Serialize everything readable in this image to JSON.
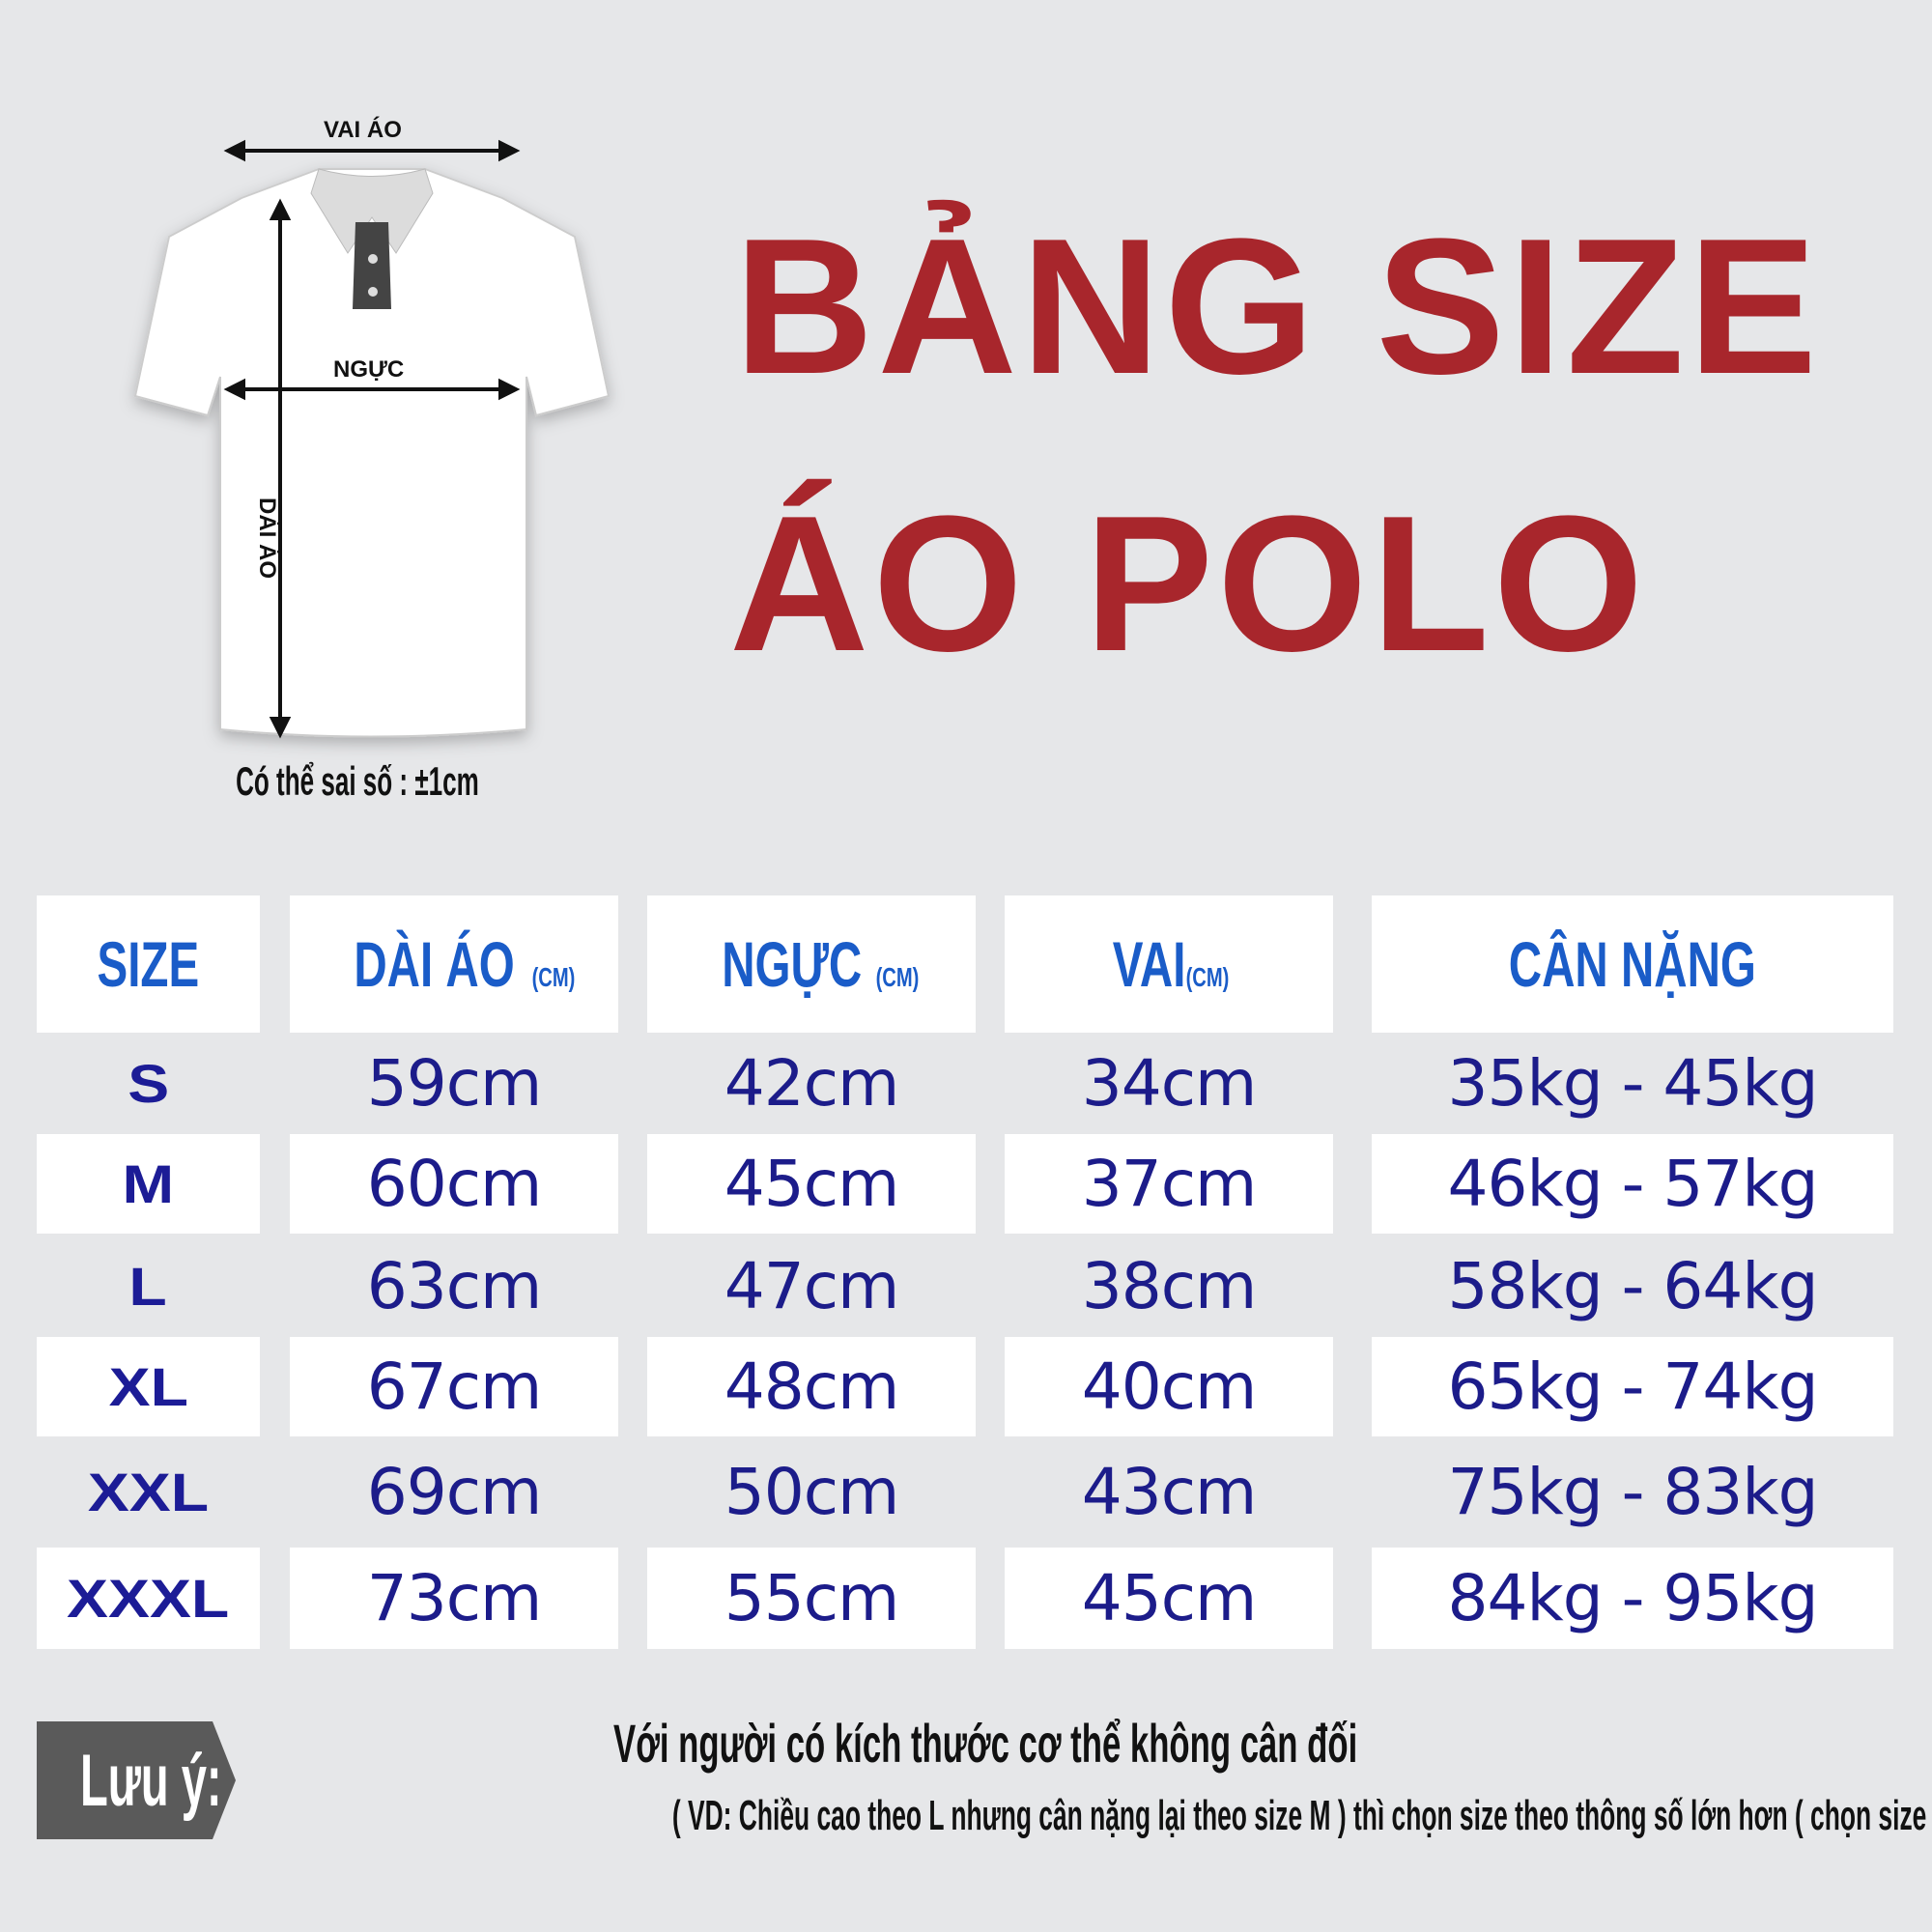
{
  "title": {
    "line1": "BẢNG SIZE",
    "line2": "ÁO POLO"
  },
  "diagram": {
    "shoulder_label": "VAI ÁO",
    "chest_label": "NGỰC",
    "length_label": "DÀI ÁO",
    "tolerance_note": "Có thể sai số : ±1cm"
  },
  "table": {
    "headers": [
      {
        "label": "SIZE",
        "unit": ""
      },
      {
        "label": "DÀI ÁO",
        "unit": "(CM)"
      },
      {
        "label": "NGỰC",
        "unit": "(CM)"
      },
      {
        "label": "VAI",
        "unit": "(CM)"
      },
      {
        "label": "CÂN NẶNG",
        "unit": ""
      }
    ],
    "rows": [
      [
        "S",
        "59cm",
        "42cm",
        "34cm",
        "35kg - 45kg"
      ],
      [
        "M",
        "60cm",
        "45cm",
        "37cm",
        "46kg - 57kg"
      ],
      [
        "L",
        "63cm",
        "47cm",
        "38cm",
        "58kg - 64kg"
      ],
      [
        "XL",
        "67cm",
        "48cm",
        "40cm",
        "65kg - 74kg"
      ],
      [
        "XXL",
        "69cm",
        "50cm",
        "43cm",
        "75kg - 83kg"
      ],
      [
        "XXXL",
        "73cm",
        "55cm",
        "45cm",
        "84kg - 95kg"
      ]
    ]
  },
  "note": {
    "tag": "Lưu ý:",
    "line1": "Với người có kích thước cơ thể không cân đối",
    "line2": "( VD: Chiều cao theo L nhưng cân nặng lại theo size M ) thì chọn size theo thông số lớn hơn ( chọn size L )"
  },
  "colors": {
    "title": "#a8262c",
    "header": "#1a5cc8",
    "values": "#1c1c8a",
    "background": "#e6e7e9",
    "note_tag": "#5a5a5a"
  }
}
